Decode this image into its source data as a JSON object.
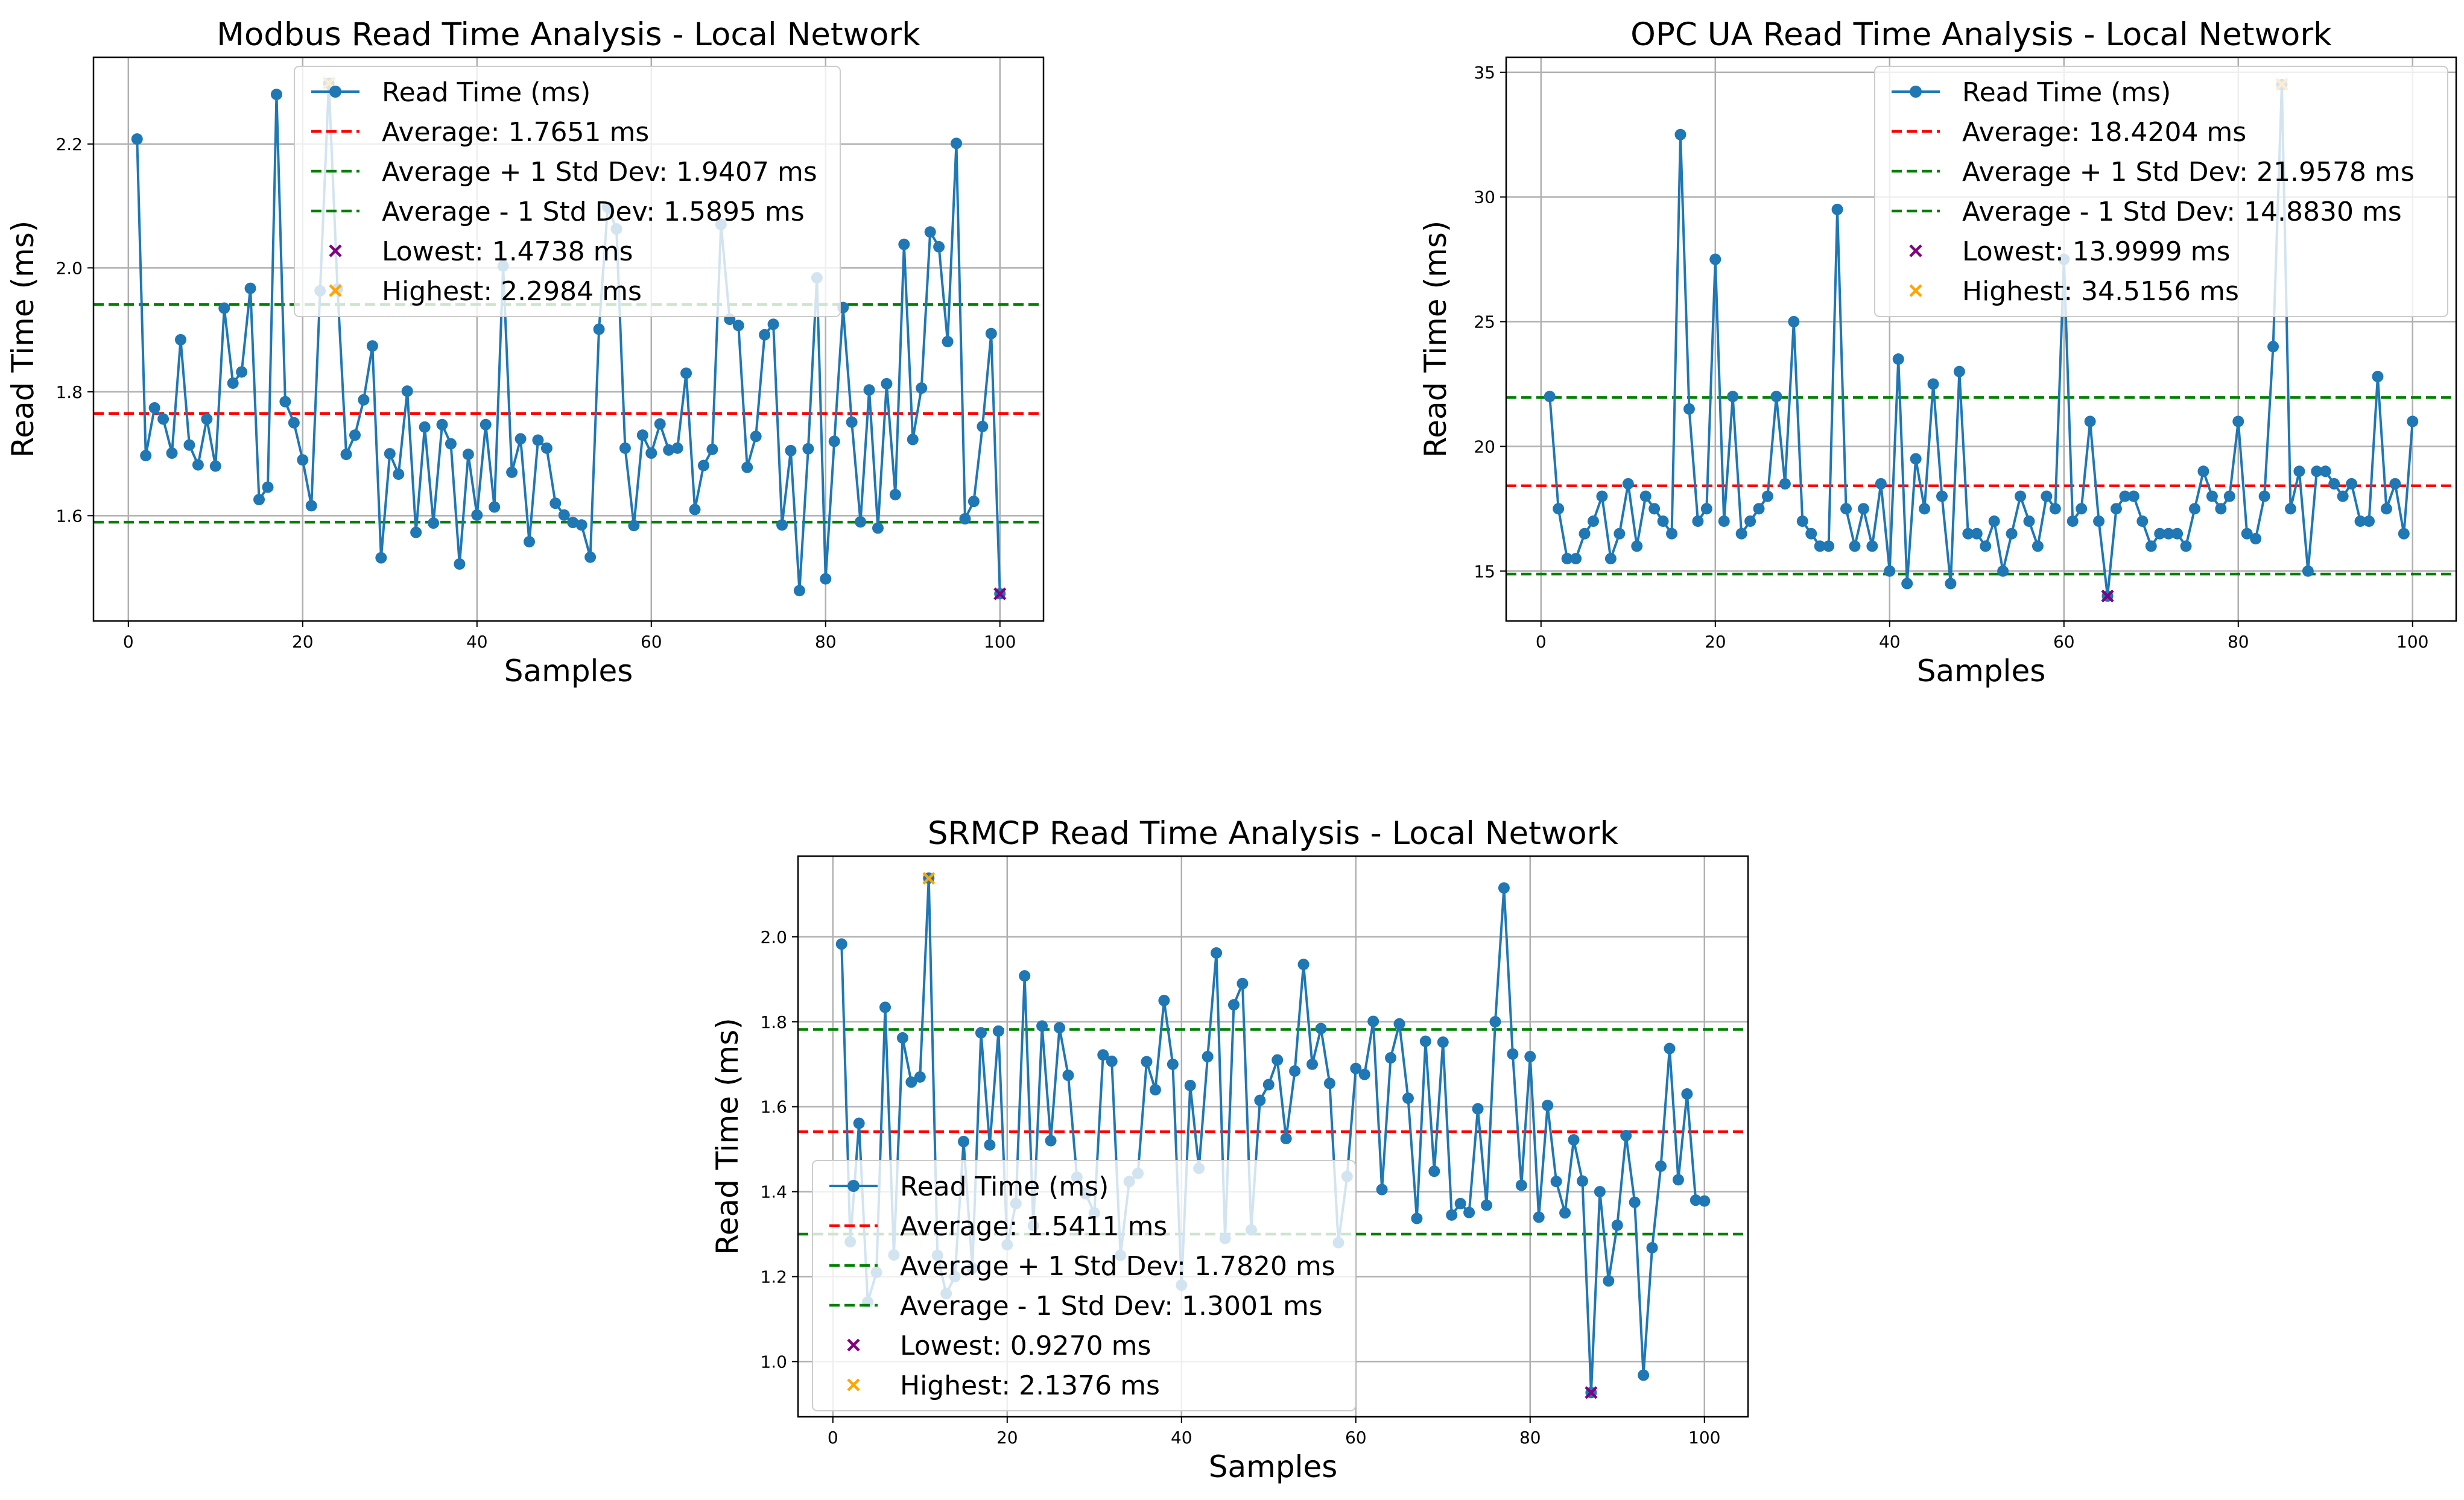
{
  "chart_data": [
    {
      "type": "line",
      "title": "Modbus Read Time Analysis - Local Network",
      "xlabel": "Samples",
      "ylabel": "Read Time (ms)",
      "xlim": [
        -4,
        105
      ],
      "ylim": [
        1.43,
        2.34
      ],
      "xticks": [
        0,
        20,
        40,
        60,
        80,
        100
      ],
      "yticks": [
        1.6,
        1.8,
        2.0,
        2.2
      ],
      "ytick_decimals": 1,
      "grid": true,
      "legend_position": "upper-center",
      "series": [
        {
          "name": "Read Time (ms)",
          "color": "#1f77b4",
          "x_start": 1,
          "values": [
            2.208,
            1.697,
            1.774,
            1.756,
            1.701,
            1.884,
            1.714,
            1.682,
            1.756,
            1.68,
            1.935,
            1.814,
            1.832,
            1.967,
            1.626,
            1.646,
            2.28,
            1.784,
            1.75,
            1.69,
            1.616,
            1.963,
            2.298,
            1.966,
            1.699,
            1.73,
            1.787,
            1.874,
            1.532,
            1.7,
            1.667,
            1.801,
            1.573,
            1.743,
            1.588,
            1.747,
            1.716,
            1.522,
            1.699,
            1.601,
            1.747,
            1.614,
            2.003,
            1.67,
            1.724,
            1.558,
            1.722,
            1.709,
            1.62,
            1.601,
            1.589,
            1.585,
            1.533,
            1.901,
            2.098,
            2.063,
            1.709,
            1.584,
            1.73,
            1.701,
            1.748,
            1.706,
            1.709,
            1.83,
            1.61,
            1.681,
            1.707,
            2.07,
            1.917,
            1.907,
            1.678,
            1.728,
            1.892,
            1.909,
            1.585,
            1.705,
            1.479,
            1.708,
            1.984,
            1.498,
            1.72,
            1.936,
            1.751,
            1.59,
            1.803,
            1.58,
            1.813,
            1.634,
            2.038,
            1.723,
            1.806,
            2.058,
            2.034,
            1.881,
            2.201,
            1.595,
            1.623,
            1.744,
            1.894,
            1.474
          ]
        }
      ],
      "reference_lines": [
        {
          "label": "Average: 1.7651 ms",
          "value": 1.7651,
          "color": "#ff0000"
        },
        {
          "label": "Average + 1 Std Dev: 1.9407 ms",
          "value": 1.9407,
          "color": "#008000"
        },
        {
          "label": "Average - 1 Std Dev: 1.5895 ms",
          "value": 1.5895,
          "color": "#008000"
        }
      ],
      "extremes": [
        {
          "label": "Lowest: 1.4738 ms",
          "x": 100,
          "value": 1.4738,
          "color": "#800080"
        },
        {
          "label": "Highest: 2.2984 ms",
          "x": 23,
          "value": 2.2984,
          "color": "#ffa500"
        }
      ]
    },
    {
      "type": "line",
      "title": "OPC UA Read Time Analysis - Local Network",
      "xlabel": "Samples",
      "ylabel": "Read Time (ms)",
      "xlim": [
        -4,
        105
      ],
      "ylim": [
        13.0,
        35.6
      ],
      "xticks": [
        0,
        20,
        40,
        60,
        80,
        100
      ],
      "yticks": [
        15,
        20,
        25,
        30,
        35
      ],
      "ytick_decimals": 0,
      "grid": true,
      "legend_position": "upper-right",
      "series": [
        {
          "name": "Read Time (ms)",
          "color": "#1f77b4",
          "x_start": 1,
          "values": [
            22.0,
            17.5,
            15.5,
            15.5,
            16.5,
            17.0,
            18.0,
            15.5,
            16.5,
            18.5,
            16.0,
            18.0,
            17.5,
            17.0,
            16.5,
            32.5,
            21.5,
            17.0,
            17.5,
            27.5,
            17.0,
            22.0,
            16.5,
            17.0,
            17.5,
            18.0,
            22.0,
            18.5,
            25.0,
            17.0,
            16.5,
            16.0,
            16.0,
            29.5,
            17.5,
            16.0,
            17.5,
            16.0,
            18.5,
            15.0,
            23.5,
            14.5,
            19.5,
            17.5,
            22.5,
            18.0,
            14.5,
            23.0,
            16.5,
            16.5,
            16.0,
            17.0,
            15.0,
            16.5,
            18.0,
            17.0,
            16.0,
            18.0,
            17.5,
            27.5,
            17.0,
            17.5,
            21.0,
            17.0,
            14.0,
            17.5,
            18.0,
            18.0,
            17.0,
            16.0,
            16.5,
            16.5,
            16.5,
            16.0,
            17.5,
            19.0,
            18.0,
            17.5,
            18.0,
            21.0,
            16.5,
            16.3,
            18.0,
            24.0,
            34.5,
            17.5,
            19.0,
            15.0,
            19.0,
            19.0,
            18.5,
            18.0,
            18.5,
            17.0,
            17.0,
            22.8,
            17.5,
            18.5,
            16.5,
            21.0
          ]
        }
      ],
      "reference_lines": [
        {
          "label": "Average: 18.4204 ms",
          "value": 18.4204,
          "color": "#ff0000"
        },
        {
          "label": "Average + 1 Std Dev: 21.9578 ms",
          "value": 21.9578,
          "color": "#008000"
        },
        {
          "label": "Average - 1 Std Dev: 14.8830 ms",
          "value": 14.883,
          "color": "#008000"
        }
      ],
      "extremes": [
        {
          "label": "Lowest: 13.9999 ms",
          "x": 65,
          "value": 13.9999,
          "color": "#800080"
        },
        {
          "label": "Highest: 34.5156 ms",
          "x": 85,
          "value": 34.5156,
          "color": "#ffa500"
        }
      ]
    },
    {
      "type": "line",
      "title": "SRMCP Read Time Analysis - Local Network",
      "xlabel": "Samples",
      "ylabel": "Read Time (ms)",
      "xlim": [
        -4,
        105
      ],
      "ylim": [
        0.87,
        2.19
      ],
      "xticks": [
        0,
        20,
        40,
        60,
        80,
        100
      ],
      "yticks": [
        1.0,
        1.2,
        1.4,
        1.6,
        1.8,
        2.0
      ],
      "ytick_decimals": 1,
      "grid": true,
      "legend_position": "lower-left",
      "series": [
        {
          "name": "Read Time (ms)",
          "color": "#1f77b4",
          "x_start": 1,
          "values": [
            1.983,
            1.282,
            1.561,
            1.14,
            1.21,
            1.834,
            1.251,
            1.762,
            1.658,
            1.67,
            2.138,
            1.25,
            1.16,
            1.2,
            1.518,
            1.22,
            1.774,
            1.51,
            1.778,
            1.275,
            1.372,
            1.908,
            1.32,
            1.79,
            1.52,
            1.786,
            1.674,
            1.434,
            1.395,
            1.35,
            1.722,
            1.707,
            1.25,
            1.424,
            1.443,
            1.706,
            1.64,
            1.85,
            1.7,
            1.18,
            1.65,
            1.455,
            1.718,
            1.962,
            1.29,
            1.84,
            1.89,
            1.31,
            1.615,
            1.652,
            1.71,
            1.525,
            1.684,
            1.935,
            1.7,
            1.784,
            1.655,
            1.28,
            1.436,
            1.69,
            1.676,
            1.801,
            1.405,
            1.715,
            1.795,
            1.62,
            1.337,
            1.754,
            1.448,
            1.752,
            1.345,
            1.372,
            1.351,
            1.595,
            1.368,
            1.8,
            2.115,
            1.724,
            1.415,
            1.718,
            1.34,
            1.603,
            1.424,
            1.35,
            1.522,
            1.425,
            0.927,
            1.4,
            1.19,
            1.321,
            1.532,
            1.375,
            0.968,
            1.268,
            1.46,
            1.737,
            1.428,
            1.63,
            1.38,
            1.378
          ]
        }
      ],
      "reference_lines": [
        {
          "label": "Average: 1.5411 ms",
          "value": 1.5411,
          "color": "#ff0000"
        },
        {
          "label": "Average + 1 Std Dev: 1.7820 ms",
          "value": 1.782,
          "color": "#008000"
        },
        {
          "label": "Average - 1 Std Dev: 1.3001 ms",
          "value": 1.3001,
          "color": "#008000"
        }
      ],
      "extremes": [
        {
          "label": "Lowest: 0.9270 ms",
          "x": 87,
          "value": 0.927,
          "color": "#800080"
        },
        {
          "label": "Highest: 2.1376 ms",
          "x": 11,
          "value": 2.1376,
          "color": "#ffa500"
        }
      ]
    }
  ]
}
